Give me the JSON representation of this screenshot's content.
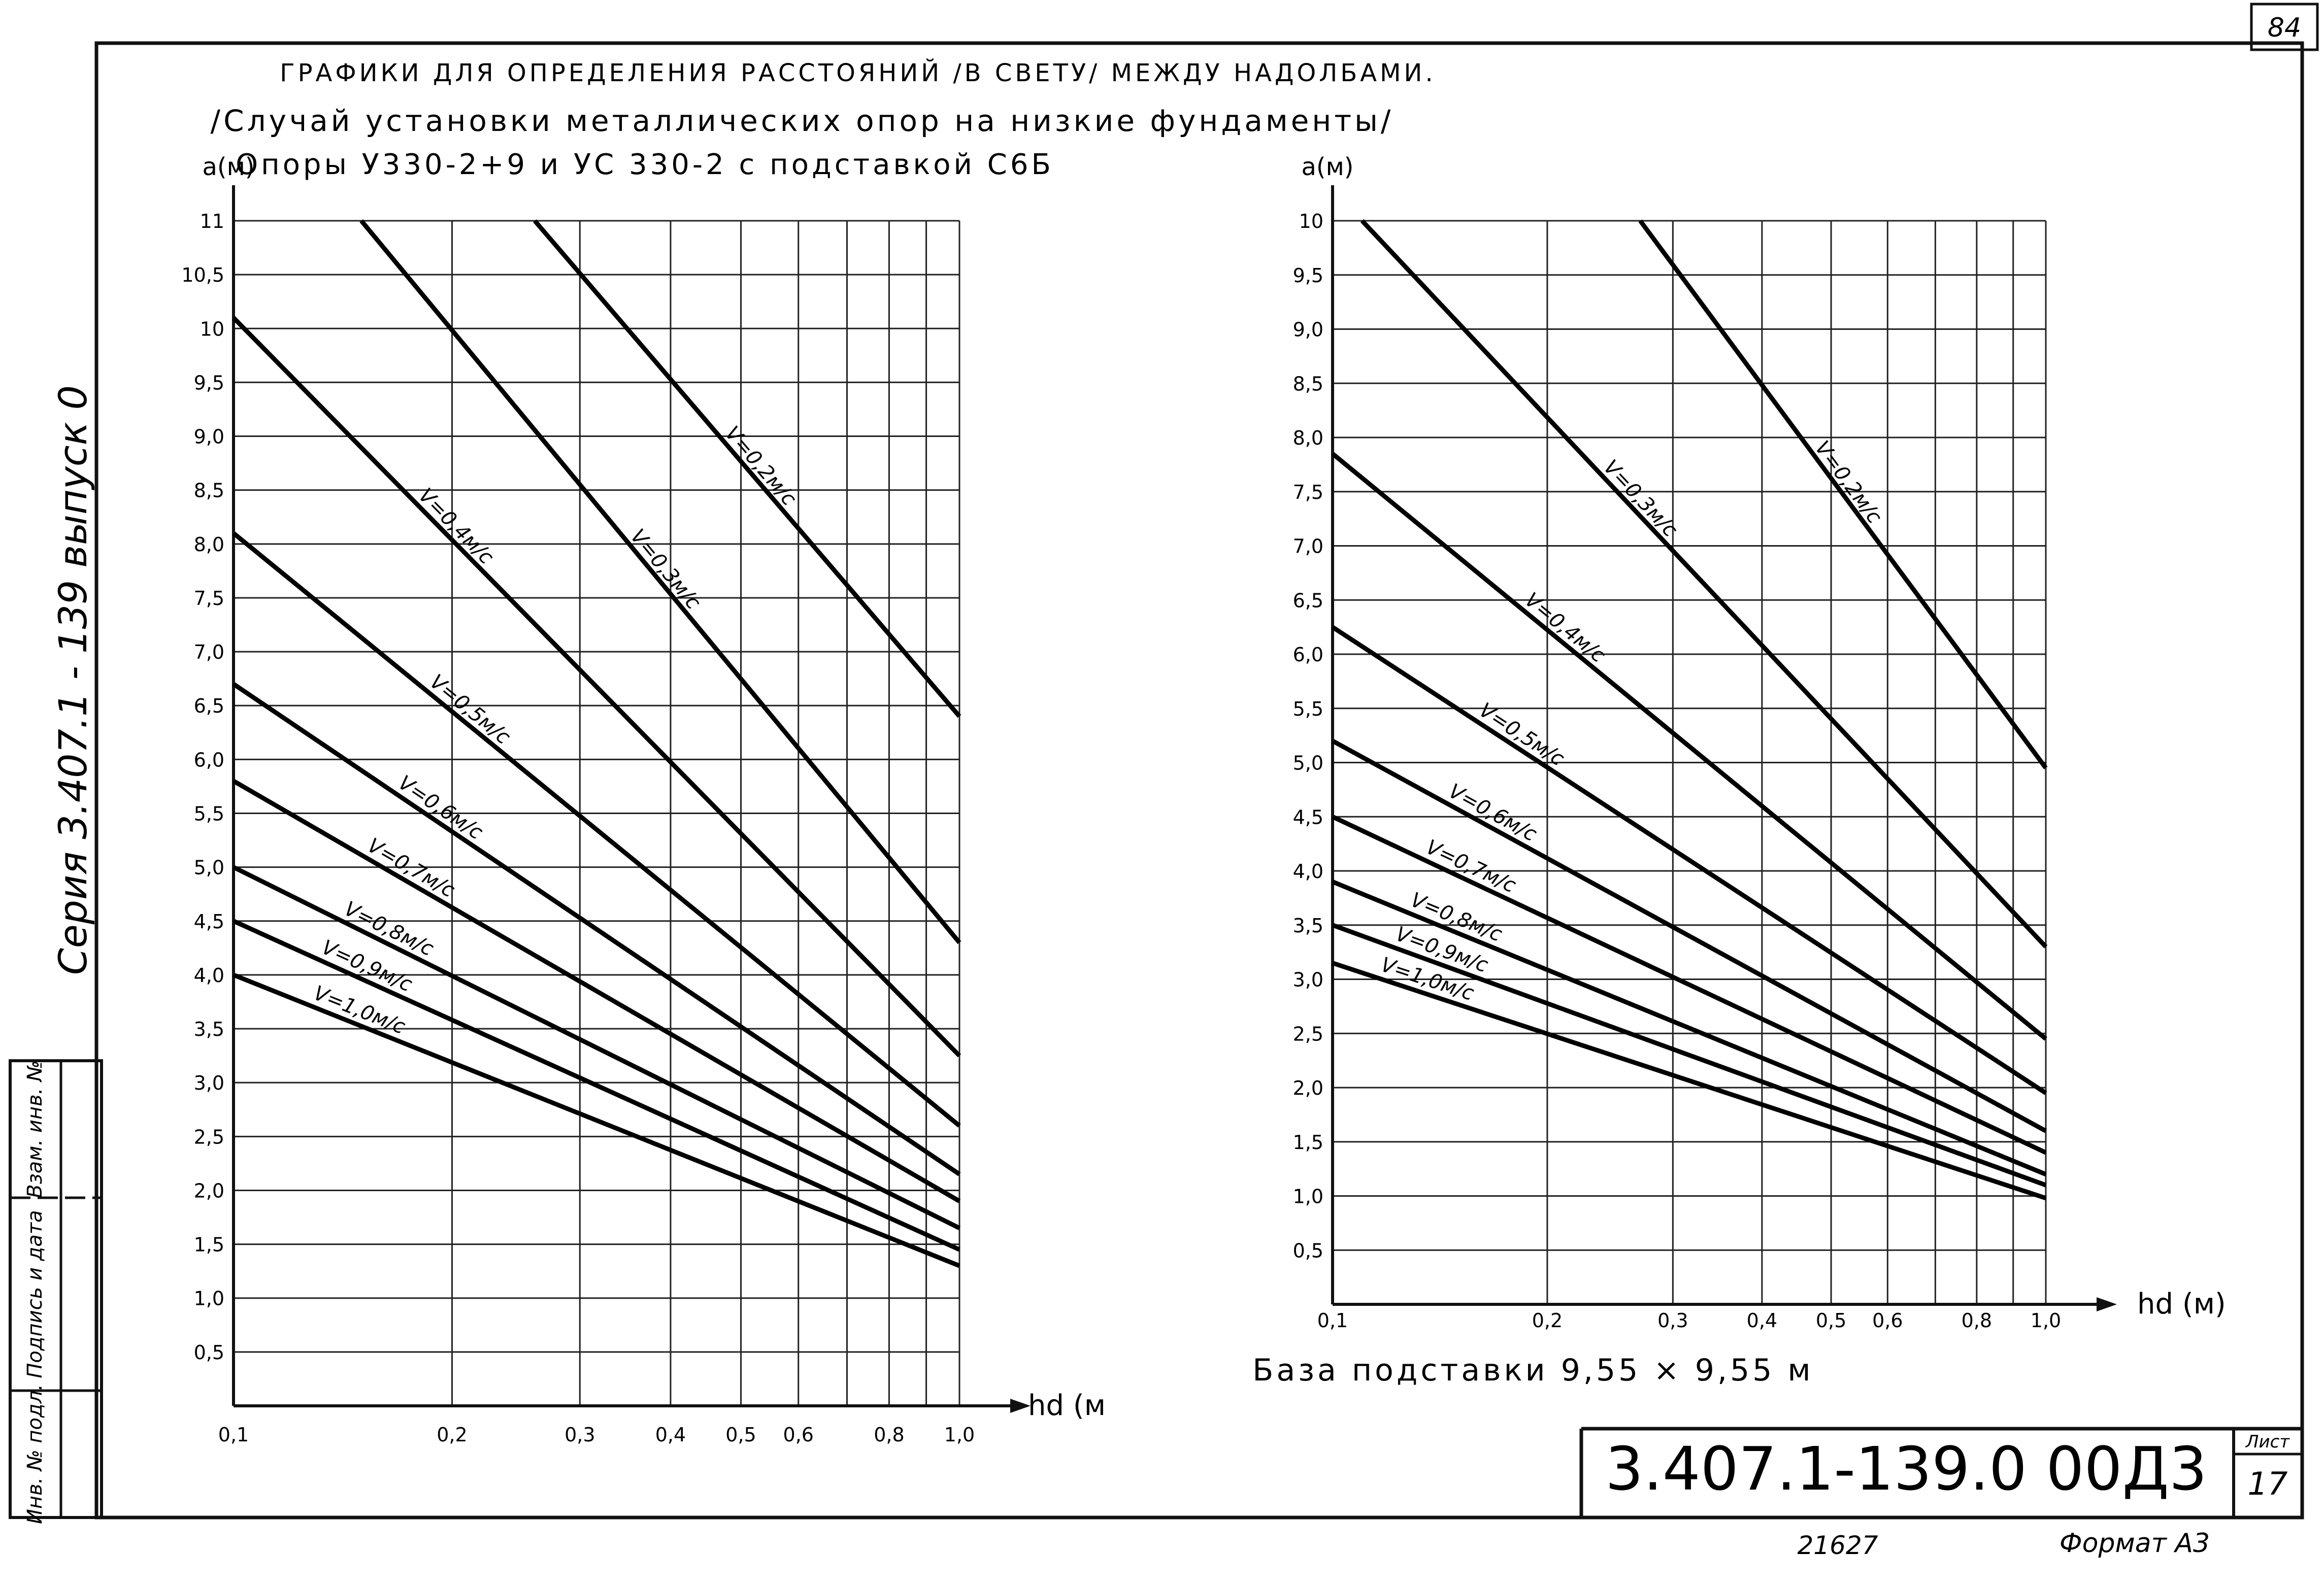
{
  "sheet": {
    "page_number": "84",
    "title_line_1": "ГРАФИКИ ДЛЯ ОПРЕДЕЛЕНИЯ РАССТОЯНИЙ /В СВЕТУ/ МЕЖДУ НАДОЛБАМИ.",
    "title_line_2": "/Случай установки металлических опор на низкие фундаменты/",
    "subtitle_left": "Опоры У330-2+9 и УС 330-2 с подставкой С6Б",
    "caption_right": "База подставки 9,55 × 9,55 м",
    "series_vertical": "Серия 3.407.1 - 139 выпуск 0",
    "stamp_code": "3.407.1-139.0 00Д3",
    "stamp_sheet_label": "Лист",
    "stamp_sheet_number": "17",
    "bottom_number": "21627",
    "format_label": "Формат А3",
    "side_labels": [
      "Инв. № подл.",
      "Подпись и дата",
      "Взам. инв. №"
    ]
  },
  "chart_data": [
    {
      "type": "line",
      "title": "Опоры У330-2+9 и УС 330-2 с подставкой С6Б",
      "xlabel": "hd (м",
      "ylabel": "a(м)",
      "x_scale": "log",
      "xlim": [
        0.1,
        1.0
      ],
      "ylim": [
        0,
        11
      ],
      "x_ticks": [
        0.1,
        0.2,
        0.3,
        0.4,
        0.5,
        0.6,
        0.7,
        0.8,
        0.9,
        1.0
      ],
      "x_tick_labels": [
        {
          "x": 0.1,
          "label": "0,1"
        },
        {
          "x": 0.2,
          "label": "0,2"
        },
        {
          "x": 0.3,
          "label": "0,3"
        },
        {
          "x": 0.4,
          "label": "0,4"
        },
        {
          "x": 0.5,
          "label": "0,5"
        },
        {
          "x": 0.6,
          "label": "0,6"
        },
        {
          "x": 0.8,
          "label": "0,8"
        },
        {
          "x": 1.0,
          "label": "1,0"
        }
      ],
      "y_ticks": [
        0.5,
        1.0,
        1.5,
        2.0,
        2.5,
        3.0,
        3.5,
        4.0,
        4.5,
        5.0,
        5.5,
        6.0,
        6.5,
        7.0,
        7.5,
        8.0,
        8.5,
        9.0,
        9.5,
        10.0,
        10.5,
        11.0
      ],
      "y_tick_labels": [
        "0,5",
        "1,0",
        "1,5",
        "2,0",
        "2,5",
        "3,0",
        "3,5",
        "4,0",
        "4,5",
        "5,0",
        "5,5",
        "6,0",
        "6,5",
        "7,0",
        "7,5",
        "8,0",
        "8,5",
        "9,0",
        "9,5",
        "10",
        "10,5",
        "11"
      ],
      "grid": true,
      "series": [
        {
          "name": "V=0,2м/с",
          "x": [
            0.26,
            1.0
          ],
          "y": [
            11.0,
            6.4
          ]
        },
        {
          "name": "V=0,3м/с",
          "x": [
            0.15,
            1.0
          ],
          "y": [
            11.0,
            4.3
          ]
        },
        {
          "name": "V=0,4м/с",
          "x": [
            0.1,
            1.0
          ],
          "y": [
            10.1,
            3.25
          ]
        },
        {
          "name": "V=0,5м/с",
          "x": [
            0.1,
            1.0
          ],
          "y": [
            8.1,
            2.6
          ]
        },
        {
          "name": "V=0,6м/с",
          "x": [
            0.1,
            1.0
          ],
          "y": [
            6.7,
            2.15
          ]
        },
        {
          "name": "V=0,7м/с",
          "x": [
            0.1,
            1.0
          ],
          "y": [
            5.8,
            1.9
          ]
        },
        {
          "name": "V=0,8м/с",
          "x": [
            0.1,
            1.0
          ],
          "y": [
            5.0,
            1.65
          ]
        },
        {
          "name": "V=0,9м/с",
          "x": [
            0.1,
            1.0
          ],
          "y": [
            4.5,
            1.45
          ]
        },
        {
          "name": "V=1,0м/с",
          "x": [
            0.1,
            1.0
          ],
          "y": [
            4.0,
            1.3
          ]
        }
      ]
    },
    {
      "type": "line",
      "title": "",
      "xlabel": "hd (м)",
      "ylabel": "a(м)",
      "x_scale": "log",
      "xlim": [
        0.1,
        1.0
      ],
      "ylim": [
        0,
        10
      ],
      "x_ticks": [
        0.1,
        0.2,
        0.3,
        0.4,
        0.5,
        0.6,
        0.7,
        0.8,
        0.9,
        1.0
      ],
      "x_tick_labels": [
        {
          "x": 0.1,
          "label": "0,1"
        },
        {
          "x": 0.2,
          "label": "0,2"
        },
        {
          "x": 0.3,
          "label": "0,3"
        },
        {
          "x": 0.4,
          "label": "0,4"
        },
        {
          "x": 0.5,
          "label": "0,5"
        },
        {
          "x": 0.6,
          "label": "0,6"
        },
        {
          "x": 0.8,
          "label": "0,8"
        },
        {
          "x": 1.0,
          "label": "1,0"
        }
      ],
      "y_ticks": [
        0.5,
        1.0,
        1.5,
        2.0,
        2.5,
        3.0,
        3.5,
        4.0,
        4.5,
        5.0,
        5.5,
        6.0,
        6.5,
        7.0,
        7.5,
        8.0,
        8.5,
        9.0,
        9.5,
        10.0
      ],
      "y_tick_labels": [
        "0,5",
        "1,0",
        "1,5",
        "2,0",
        "2,5",
        "3,0",
        "3,5",
        "4,0",
        "4,5",
        "5,0",
        "5,5",
        "6,0",
        "6,5",
        "7,0",
        "7,5",
        "8,0",
        "8,5",
        "9,0",
        "9,5",
        "10"
      ],
      "grid": true,
      "series": [
        {
          "name": "V=0,2м/с",
          "x": [
            0.27,
            1.0
          ],
          "y": [
            10.0,
            4.95
          ]
        },
        {
          "name": "V=0,3м/с",
          "x": [
            0.11,
            1.0
          ],
          "y": [
            10.0,
            3.3
          ]
        },
        {
          "name": "V=0,4м/с",
          "x": [
            0.1,
            1.0
          ],
          "y": [
            7.85,
            2.45
          ]
        },
        {
          "name": "V=0,5м/с",
          "x": [
            0.1,
            1.0
          ],
          "y": [
            6.25,
            1.95
          ]
        },
        {
          "name": "V=0,6м/с",
          "x": [
            0.1,
            1.0
          ],
          "y": [
            5.2,
            1.6
          ]
        },
        {
          "name": "V=0,7м/с",
          "x": [
            0.1,
            1.0
          ],
          "y": [
            4.5,
            1.4
          ]
        },
        {
          "name": "V=0,8м/с",
          "x": [
            0.1,
            1.0
          ],
          "y": [
            3.9,
            1.2
          ]
        },
        {
          "name": "V=0,9м/с",
          "x": [
            0.1,
            1.0
          ],
          "y": [
            3.5,
            1.1
          ]
        },
        {
          "name": "V=1,0м/с",
          "x": [
            0.1,
            1.0
          ],
          "y": [
            3.15,
            0.98
          ]
        }
      ]
    }
  ]
}
